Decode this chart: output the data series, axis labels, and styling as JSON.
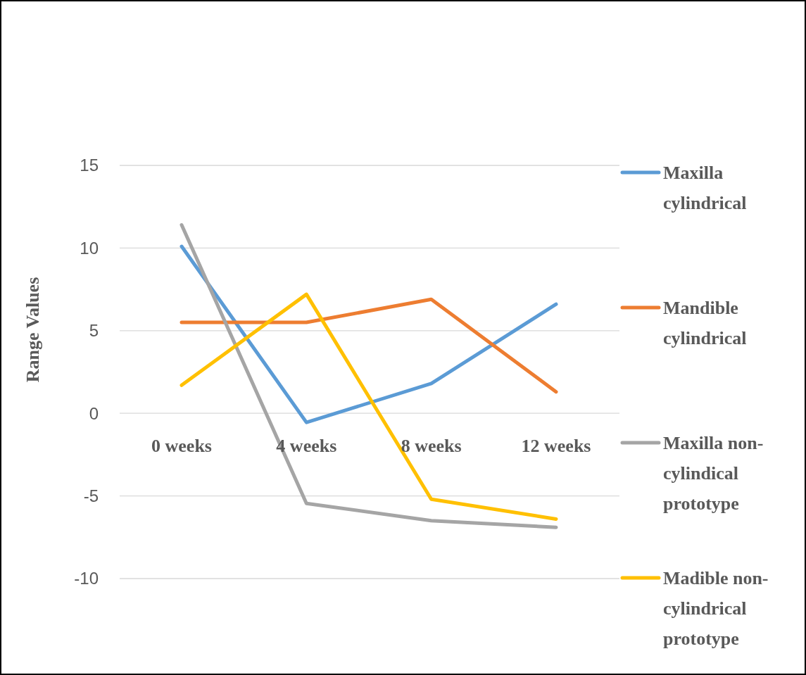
{
  "chart_data": {
    "type": "line",
    "ylabel": "Range Values",
    "categories": [
      "0 weeks",
      "4 weeks",
      "8 weeks",
      "12 weeks"
    ],
    "ylim": [
      -10,
      15
    ],
    "yticks": [
      -10,
      -5,
      0,
      5,
      10,
      15
    ],
    "grid": "y",
    "legend": "right",
    "line_style": "solid",
    "series": [
      {
        "name": "Maxilla cylindrical",
        "color": "#5b9bd5",
        "values": [
          10.1,
          -0.55,
          1.8,
          6.6
        ]
      },
      {
        "name": "Mandible cylindrical",
        "color": "#ed7d31",
        "values": [
          5.5,
          5.5,
          6.9,
          1.3
        ]
      },
      {
        "name": "Maxilla non-cylindical prototype",
        "color": "#a5a5a5",
        "values": [
          11.4,
          -5.45,
          -6.5,
          -6.9
        ]
      },
      {
        "name": "Madible non-cylindrical prototype",
        "color": "#ffc000",
        "values": [
          1.7,
          7.2,
          -5.2,
          -6.4
        ]
      }
    ]
  }
}
